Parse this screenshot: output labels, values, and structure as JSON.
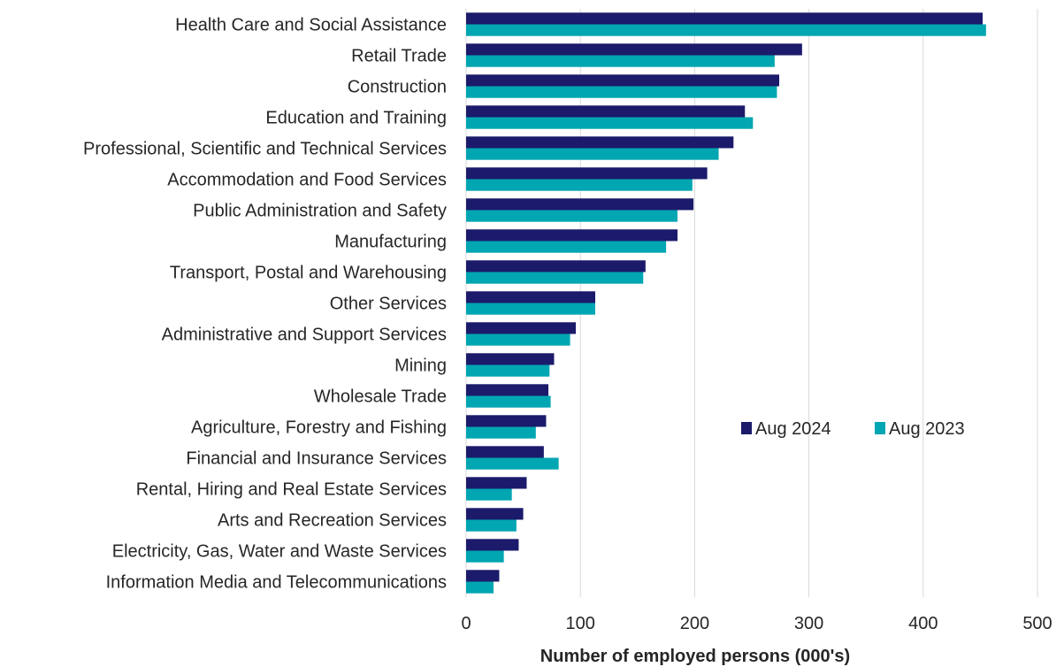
{
  "chart_data": {
    "type": "bar",
    "orientation": "horizontal",
    "categories": [
      "Health Care and Social Assistance",
      "Retail Trade",
      "Construction",
      "Education and Training",
      "Professional, Scientific and Technical Services",
      "Accommodation and Food Services",
      "Public Administration and Safety",
      "Manufacturing",
      "Transport, Postal and Warehousing",
      "Other Services",
      "Administrative and Support Services",
      "Mining",
      "Wholesale Trade",
      "Agriculture, Forestry and Fishing",
      "Financial and Insurance Services",
      "Rental, Hiring and Real Estate Services",
      "Arts and Recreation Services",
      "Electricity, Gas, Water and Waste Services",
      "Information Media and Telecommunications"
    ],
    "series": [
      {
        "name": "Aug 2024",
        "color": "#1b1a6b",
        "values": [
          452,
          294,
          274,
          244,
          234,
          211,
          199,
          185,
          157,
          113,
          96,
          77,
          72,
          70,
          68,
          53,
          50,
          46,
          29
        ]
      },
      {
        "name": "Aug 2023",
        "color": "#00a6b2",
        "values": [
          455,
          270,
          272,
          251,
          221,
          198,
          185,
          175,
          155,
          113,
          91,
          73,
          74,
          61,
          81,
          40,
          44,
          33,
          24
        ]
      }
    ],
    "xlabel": "Number of employed persons (000's)",
    "xlim": [
      0,
      500
    ],
    "xticks": [
      "0",
      "100",
      "200",
      "300",
      "400",
      "500"
    ],
    "grid": "vertical",
    "legend_position": "center-right"
  }
}
